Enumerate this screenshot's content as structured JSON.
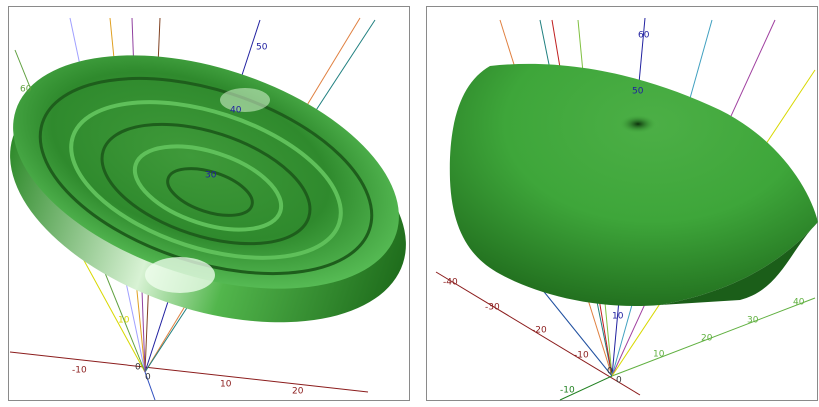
{
  "left_view": {
    "labels": [
      "50",
      "40",
      "30",
      "60",
      "10",
      "-10",
      "0",
      "0",
      "10",
      "20"
    ]
  },
  "right_view": {
    "labels": [
      "60",
      "50",
      "-40",
      "-30",
      "-20",
      "-10",
      "10",
      "0",
      "0",
      "-10",
      "10",
      "20",
      "30",
      "40"
    ]
  }
}
